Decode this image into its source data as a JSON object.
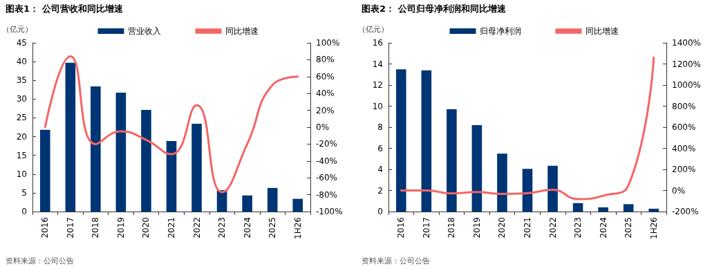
{
  "chart_data": [
    {
      "type": "bar",
      "title": "图表1：  公司营收和同比增速",
      "ylabel": "（亿元）",
      "categories": [
        "2016",
        "2017",
        "2018",
        "2019",
        "2020",
        "2021",
        "2022",
        "2023",
        "2024",
        "2025",
        "1H26"
      ],
      "series": [
        {
          "name": "营业收入",
          "color": "#003575",
          "values": [
            21.8,
            39.7,
            33.4,
            31.7,
            27.1,
            18.8,
            23.4,
            5.7,
            4.3,
            6.3,
            3.4
          ]
        },
        {
          "name": "同比增速",
          "type": "line",
          "axis": "y2",
          "color": "#f56565",
          "values": [
            0,
            84,
            -20,
            -5,
            -15,
            -32,
            26,
            -77,
            -20,
            50,
            60
          ]
        }
      ],
      "ylim": [
        0,
        45
      ],
      "yticks": [
        0,
        5,
        10,
        15,
        20,
        25,
        30,
        35,
        40,
        45
      ],
      "y2lim": [
        -100,
        100
      ],
      "y2ticks": [
        {
          "value": -100,
          "label": "-100%"
        },
        {
          "value": -80,
          "label": "-80%"
        },
        {
          "value": -60,
          "label": "-60%"
        },
        {
          "value": -40,
          "label": "-40%"
        },
        {
          "value": -20,
          "label": "-20%"
        },
        {
          "value": 0,
          "label": "0%"
        },
        {
          "value": 20,
          "label": "20%"
        },
        {
          "value": 40,
          "label": "40%"
        },
        {
          "value": 60,
          "label": "60%"
        },
        {
          "value": 80,
          "label": "80%"
        },
        {
          "value": 100,
          "label": "100%"
        }
      ],
      "grid": false,
      "legend": "top",
      "marker": "none",
      "annotations": [
        "资料来源：公司公告"
      ]
    },
    {
      "type": "bar",
      "title": "图表2：  公司归母净利润和同比增速",
      "ylabel": "（亿元）",
      "categories": [
        "2016",
        "2017",
        "2018",
        "2019",
        "2020",
        "2021",
        "2022",
        "2023",
        "2024",
        "2025",
        "1H26"
      ],
      "series": [
        {
          "name": "归母净利润",
          "color": "#003575",
          "values": [
            13.5,
            13.4,
            9.7,
            8.2,
            5.5,
            4.05,
            4.35,
            0.8,
            0.4,
            0.7,
            0.27
          ]
        },
        {
          "name": "同比增速",
          "type": "line",
          "axis": "y2",
          "color": "#f56565",
          "values": [
            0,
            0,
            -28,
            -15,
            -33,
            -26,
            7,
            -82,
            -50,
            50,
            1260
          ]
        }
      ],
      "ylim": [
        0,
        16
      ],
      "yticks": [
        0,
        2,
        4,
        6,
        8,
        10,
        12,
        14,
        16
      ],
      "y2lim": [
        -200,
        1400
      ],
      "y2ticks": [
        {
          "value": -200,
          "label": "-200%"
        },
        {
          "value": 0,
          "label": "0%"
        },
        {
          "value": 200,
          "label": "200%"
        },
        {
          "value": 400,
          "label": "400%"
        },
        {
          "value": 600,
          "label": "600%"
        },
        {
          "value": 800,
          "label": "800%"
        },
        {
          "value": 1000,
          "label": "1000%"
        },
        {
          "value": 1200,
          "label": "1200%"
        },
        {
          "value": 1400,
          "label": "1400%"
        }
      ],
      "grid": false,
      "legend": "top",
      "marker": "none",
      "annotations": [
        "资料来源：公司公告"
      ]
    }
  ]
}
